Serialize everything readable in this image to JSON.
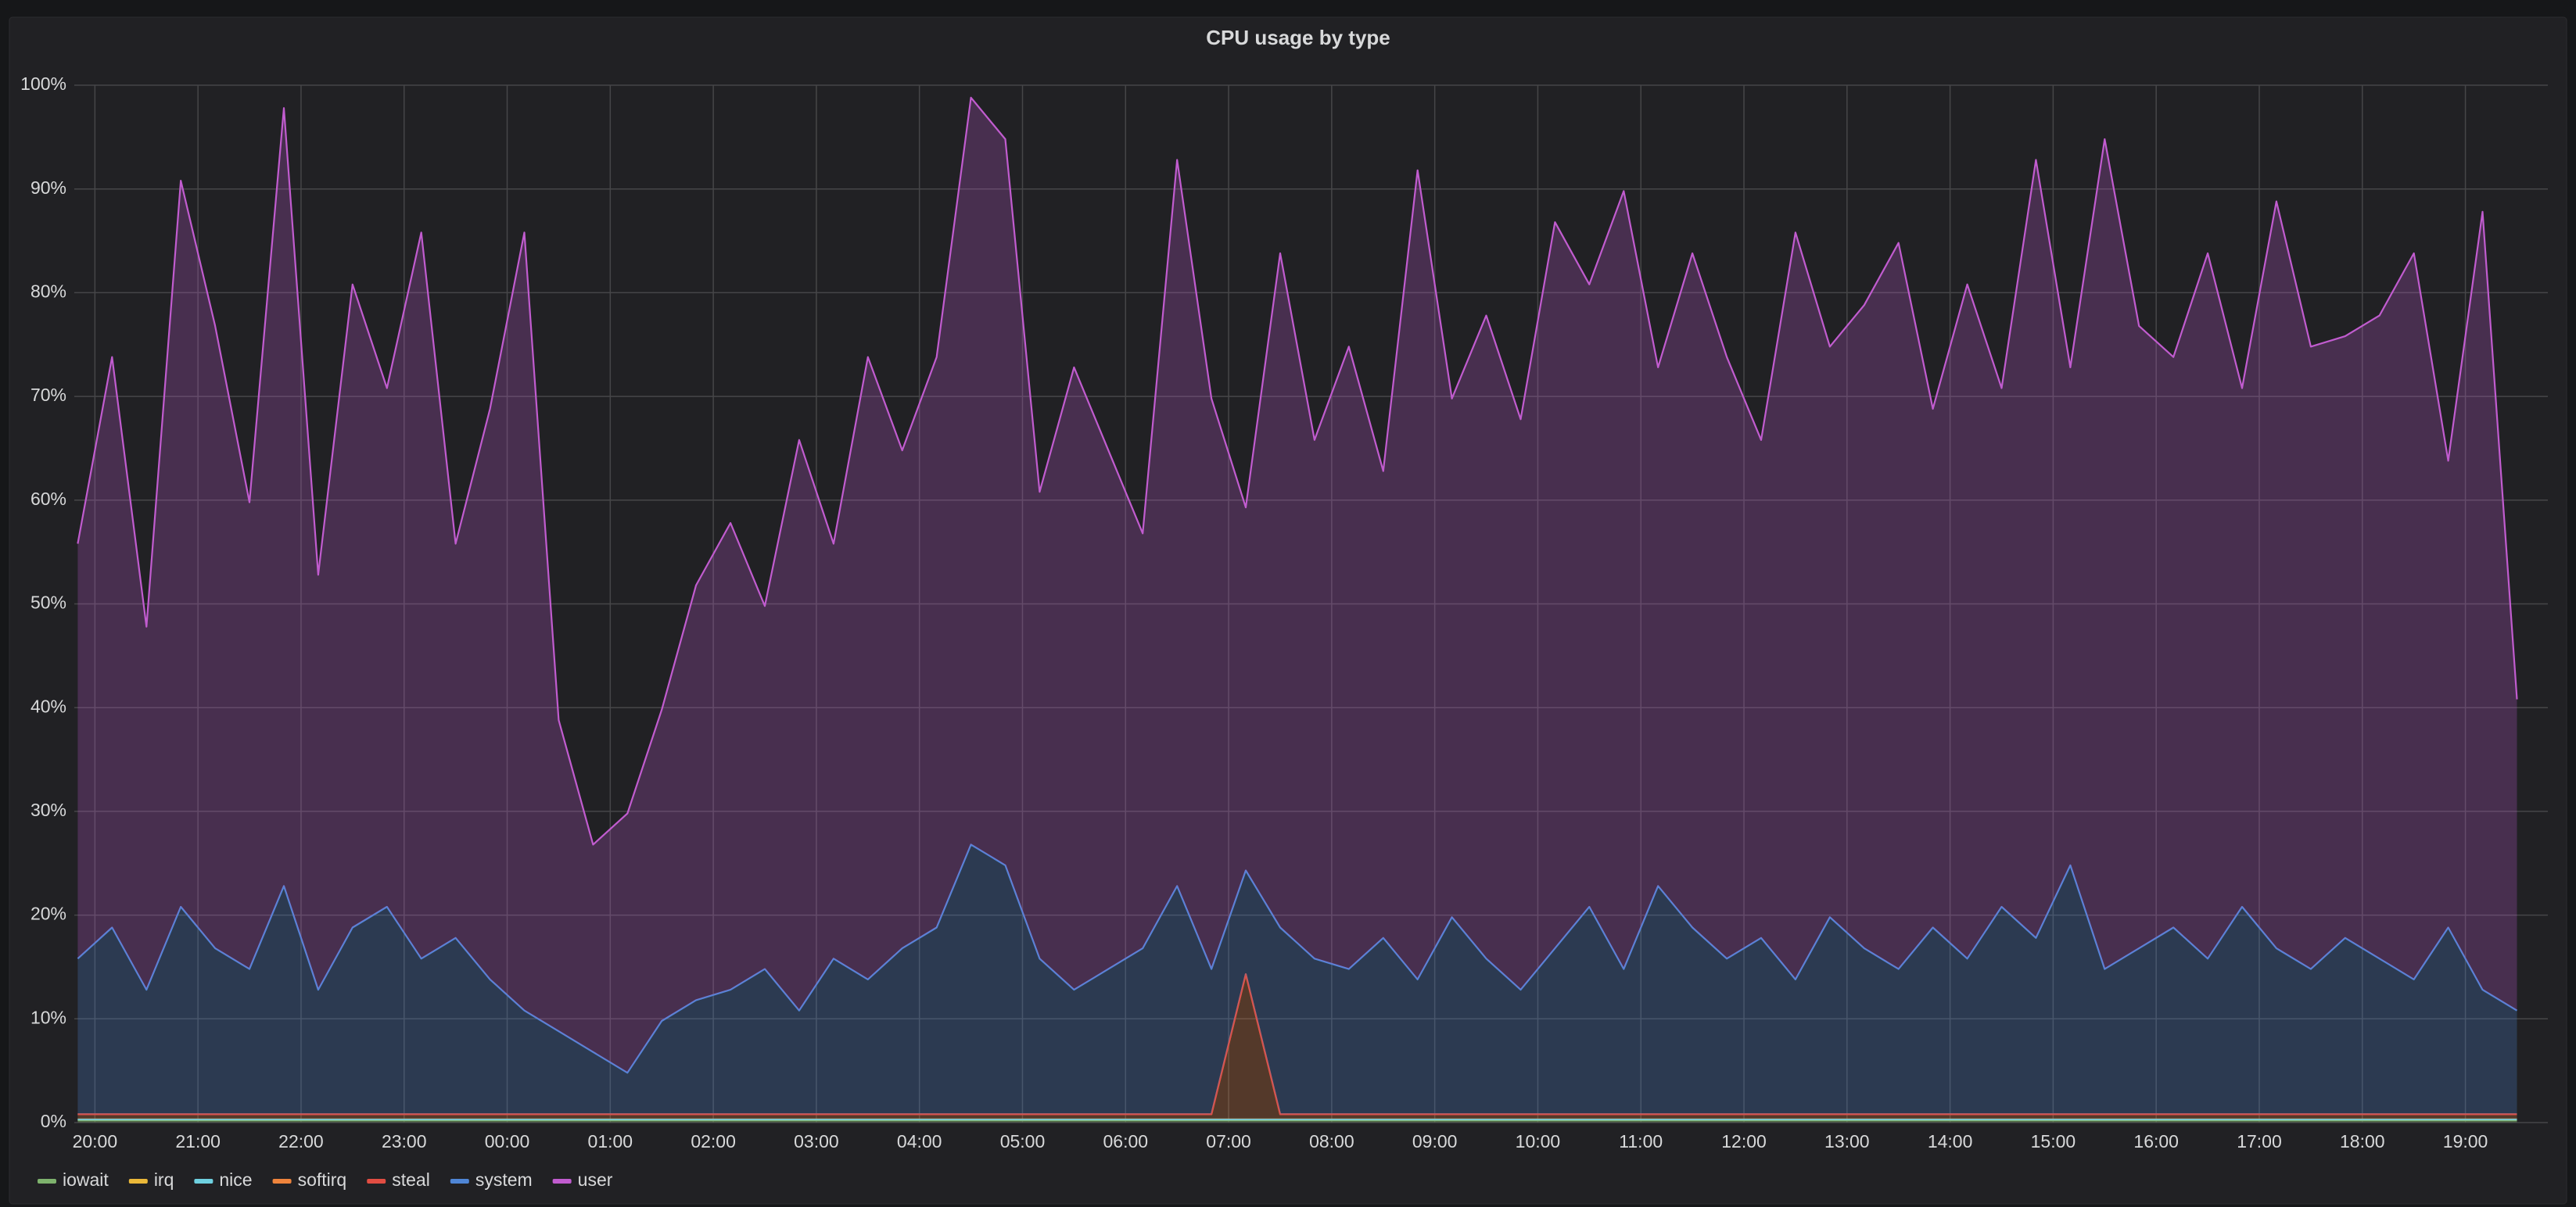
{
  "chart_data": {
    "type": "line",
    "title": "CPU usage by type",
    "stacked": true,
    "fill": true,
    "grid": true,
    "legend": "bottom-left",
    "x": [
      "19:50",
      "20:10",
      "20:30",
      "20:50",
      "21:10",
      "21:30",
      "21:50",
      "22:10",
      "22:30",
      "22:50",
      "23:10",
      "23:30",
      "23:50",
      "00:10",
      "00:30",
      "00:50",
      "01:10",
      "01:30",
      "01:50",
      "02:10",
      "02:30",
      "02:50",
      "03:10",
      "03:30",
      "03:50",
      "04:10",
      "04:30",
      "04:50",
      "05:10",
      "05:30",
      "05:50",
      "06:10",
      "06:30",
      "06:50",
      "07:10",
      "07:30",
      "07:50",
      "08:10",
      "08:30",
      "08:50",
      "09:10",
      "09:30",
      "09:50",
      "10:10",
      "10:30",
      "10:50",
      "11:10",
      "11:30",
      "11:50",
      "12:10",
      "12:30",
      "12:50",
      "13:10",
      "13:30",
      "13:50",
      "14:10",
      "14:30",
      "14:50",
      "15:10",
      "15:30",
      "15:50",
      "16:10",
      "16:30",
      "16:50",
      "17:10",
      "17:30",
      "17:50",
      "18:10",
      "18:30",
      "18:50",
      "19:10",
      "19:30"
    ],
    "xticks": [
      "20:00",
      "21:00",
      "22:00",
      "23:00",
      "00:00",
      "01:00",
      "02:00",
      "03:00",
      "04:00",
      "05:00",
      "06:00",
      "07:00",
      "08:00",
      "09:00",
      "10:00",
      "11:00",
      "12:00",
      "13:00",
      "14:00",
      "15:00",
      "16:00",
      "17:00",
      "18:00",
      "19:00"
    ],
    "ylim": [
      0,
      100
    ],
    "yticks": [
      {
        "value": 0,
        "label": "0%"
      },
      {
        "value": 10,
        "label": "10%"
      },
      {
        "value": 20,
        "label": "20%"
      },
      {
        "value": 30,
        "label": "30%"
      },
      {
        "value": 40,
        "label": "40%"
      },
      {
        "value": 50,
        "label": "50%"
      },
      {
        "value": 60,
        "label": "60%"
      },
      {
        "value": 70,
        "label": "70%"
      },
      {
        "value": 80,
        "label": "80%"
      },
      {
        "value": 90,
        "label": "90%"
      },
      {
        "value": 100,
        "label": "100%"
      }
    ],
    "series": [
      {
        "name": "iowait",
        "color": "#7eb26d",
        "values": [
          0.2,
          0.2,
          0.2,
          0.2,
          0.2,
          0.2,
          0.2,
          0.2,
          0.2,
          0.2,
          0.2,
          0.2,
          0.2,
          0.2,
          0.2,
          0.2,
          0.2,
          0.2,
          0.2,
          0.2,
          0.2,
          0.2,
          0.2,
          0.2,
          0.2,
          0.2,
          0.2,
          0.2,
          0.2,
          0.2,
          0.2,
          0.2,
          0.2,
          0.2,
          0.2,
          0.2,
          0.2,
          0.2,
          0.2,
          0.2,
          0.2,
          0.2,
          0.2,
          0.2,
          0.2,
          0.2,
          0.2,
          0.2,
          0.2,
          0.2,
          0.2,
          0.2,
          0.2,
          0.2,
          0.2,
          0.2,
          0.2,
          0.2,
          0.2,
          0.2,
          0.2,
          0.2,
          0.2,
          0.2,
          0.2,
          0.2,
          0.2,
          0.2,
          0.2,
          0.2,
          0.2,
          0.2
        ]
      },
      {
        "name": "irq",
        "color": "#eab839",
        "values": [
          0.1,
          0.1,
          0.1,
          0.1,
          0.1,
          0.1,
          0.1,
          0.1,
          0.1,
          0.1,
          0.1,
          0.1,
          0.1,
          0.1,
          0.1,
          0.1,
          0.1,
          0.1,
          0.1,
          0.1,
          0.1,
          0.1,
          0.1,
          0.1,
          0.1,
          0.1,
          0.1,
          0.1,
          0.1,
          0.1,
          0.1,
          0.1,
          0.1,
          0.1,
          0.1,
          0.1,
          0.1,
          0.1,
          0.1,
          0.1,
          0.1,
          0.1,
          0.1,
          0.1,
          0.1,
          0.1,
          0.1,
          0.1,
          0.1,
          0.1,
          0.1,
          0.1,
          0.1,
          0.1,
          0.1,
          0.1,
          0.1,
          0.1,
          0.1,
          0.1,
          0.1,
          0.1,
          0.1,
          0.1,
          0.1,
          0.1,
          0.1,
          0.1,
          0.1,
          0.1,
          0.1,
          0.1
        ]
      },
      {
        "name": "nice",
        "color": "#6ed0e0",
        "values": [
          0,
          0,
          0,
          0,
          0,
          0,
          0,
          0,
          0,
          0,
          0,
          0,
          0,
          0,
          0,
          0,
          0,
          0,
          0,
          0,
          0,
          0,
          0,
          0,
          0,
          0,
          0,
          0,
          0,
          0,
          0,
          0,
          0,
          0,
          0,
          0,
          0,
          0,
          0,
          0,
          0,
          0,
          0,
          0,
          0,
          0,
          0,
          0,
          0,
          0,
          0,
          0,
          0,
          0,
          0,
          0,
          0,
          0,
          0,
          0,
          0,
          0,
          0,
          0,
          0,
          0,
          0,
          0,
          0,
          0,
          0,
          0
        ]
      },
      {
        "name": "softirq",
        "color": "#ef843c",
        "values": [
          0.5,
          0.5,
          0.5,
          0.5,
          0.5,
          0.5,
          0.5,
          0.5,
          0.5,
          0.5,
          0.5,
          0.5,
          0.5,
          0.5,
          0.5,
          0.5,
          0.5,
          0.5,
          0.5,
          0.5,
          0.5,
          0.5,
          0.5,
          0.5,
          0.5,
          0.5,
          0.5,
          0.5,
          0.5,
          0.5,
          0.5,
          0.5,
          0.5,
          0.5,
          14,
          0.5,
          0.5,
          0.5,
          0.5,
          0.5,
          0.5,
          0.5,
          0.5,
          0.5,
          0.5,
          0.5,
          0.5,
          0.5,
          0.5,
          0.5,
          0.5,
          0.5,
          0.5,
          0.5,
          0.5,
          0.5,
          0.5,
          0.5,
          0.5,
          0.5,
          0.5,
          0.5,
          0.5,
          0.5,
          0.5,
          0.5,
          0.5,
          0.5,
          0.5,
          0.5,
          0.5,
          0.5
        ]
      },
      {
        "name": "steal",
        "color": "#e24d42",
        "values": [
          0,
          0,
          0,
          0,
          0,
          0,
          0,
          0,
          0,
          0,
          0,
          0,
          0,
          0,
          0,
          0,
          0,
          0,
          0,
          0,
          0,
          0,
          0,
          0,
          0,
          0,
          0,
          0,
          0,
          0,
          0,
          0,
          0,
          0,
          0,
          0,
          0,
          0,
          0,
          0,
          0,
          0,
          0,
          0,
          0,
          0,
          0,
          0,
          0,
          0,
          0,
          0,
          0,
          0,
          0,
          0,
          0,
          0,
          0,
          0,
          0,
          0,
          0,
          0,
          0,
          0,
          0,
          0,
          0,
          0,
          0,
          0
        ]
      },
      {
        "name": "system",
        "color": "#4f86d6",
        "values": [
          15,
          18,
          12,
          20,
          16,
          14,
          22,
          12,
          18,
          20,
          15,
          17,
          13,
          10,
          8,
          6,
          4,
          9,
          11,
          12,
          14,
          10,
          15,
          13,
          16,
          18,
          26,
          24,
          15,
          12,
          14,
          16,
          22,
          14,
          10,
          18,
          15,
          14,
          17,
          13,
          19,
          15,
          12,
          16,
          20,
          14,
          22,
          18,
          15,
          17,
          13,
          19,
          16,
          14,
          18,
          15,
          20,
          17,
          24,
          14,
          16,
          18,
          15,
          20,
          16,
          14,
          17,
          15,
          13,
          18,
          12,
          10
        ]
      },
      {
        "name": "user",
        "color": "#c15ccf",
        "values": [
          40,
          55,
          35,
          70,
          60,
          45,
          75,
          40,
          62,
          50,
          70,
          38,
          55,
          75,
          30,
          20,
          25,
          30,
          40,
          45,
          35,
          55,
          40,
          60,
          48,
          55,
          72,
          70,
          45,
          60,
          50,
          40,
          70,
          55,
          35,
          65,
          50,
          60,
          45,
          78,
          50,
          62,
          55,
          70,
          60,
          75,
          50,
          65,
          58,
          48,
          72,
          55,
          62,
          70,
          50,
          65,
          50,
          75,
          48,
          80,
          60,
          55,
          68,
          50,
          72,
          60,
          58,
          62,
          70,
          45,
          75,
          30
        ]
      }
    ]
  }
}
